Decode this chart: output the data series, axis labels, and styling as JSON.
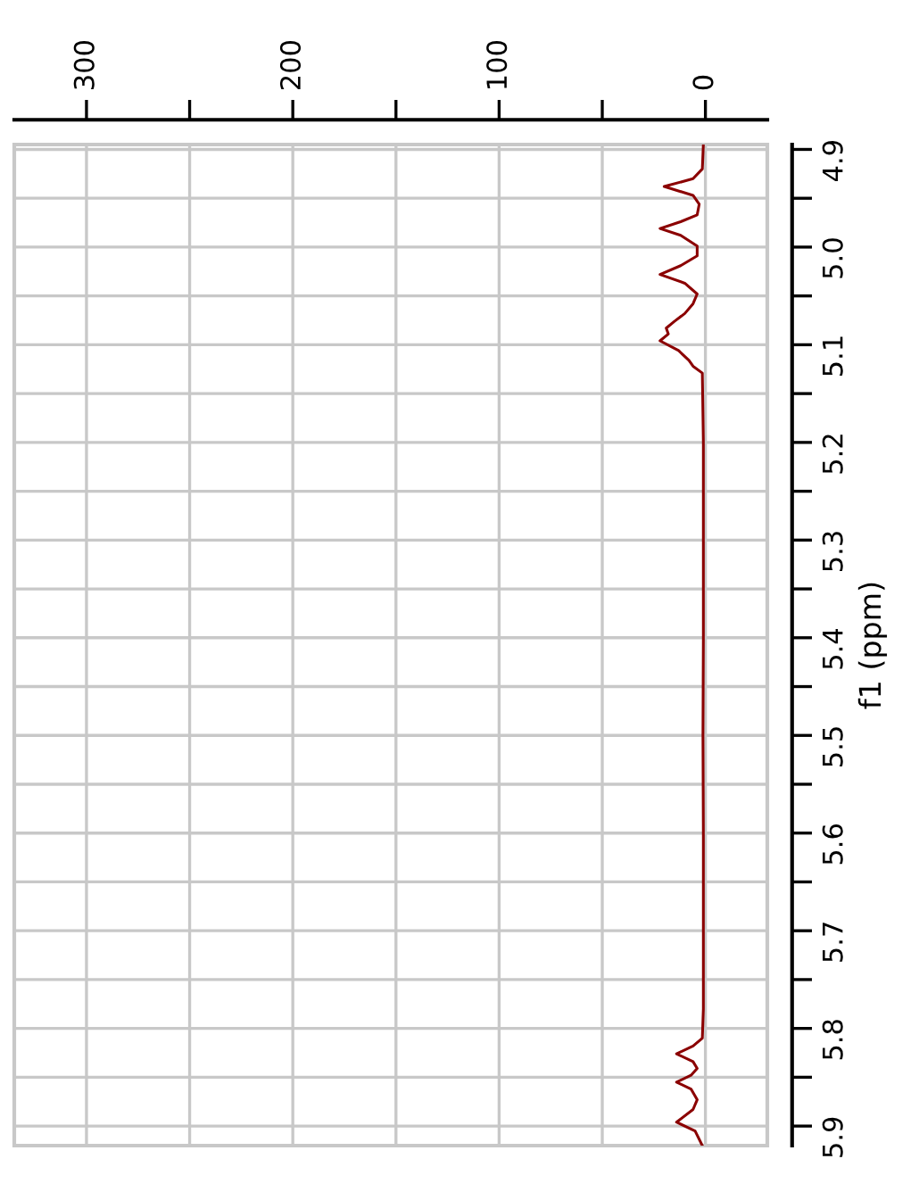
{
  "chart_data": {
    "type": "line",
    "orientation": "horizontal",
    "ylabel": "f1 (ppm)",
    "x": [
      4.895,
      4.92,
      4.93,
      4.938,
      4.947,
      4.956,
      4.967,
      4.974,
      4.981,
      4.988,
      4.999,
      5.009,
      5.019,
      5.028,
      5.037,
      5.048,
      5.058,
      5.068,
      5.076,
      5.083,
      5.089,
      5.096,
      5.106,
      5.116,
      5.122,
      5.129,
      5.2,
      5.3,
      5.4,
      5.5,
      5.6,
      5.7,
      5.78,
      5.81,
      5.818,
      5.826,
      5.834,
      5.841,
      5.848,
      5.855,
      5.862,
      5.873,
      5.883,
      5.896,
      5.905,
      5.92
    ],
    "series": [
      {
        "color": "#8b0000",
        "values": [
          1,
          1.5,
          6,
          20,
          6,
          3,
          4,
          12,
          22,
          12,
          4,
          4,
          12,
          22,
          10,
          4,
          6,
          10,
          15,
          19,
          18,
          22,
          13,
          8,
          6,
          1.5,
          1,
          1,
          1,
          1.2,
          1,
          1,
          1,
          1.5,
          6,
          14,
          6,
          4,
          7,
          14,
          7,
          4,
          6,
          14,
          5,
          1.5
        ]
      }
    ],
    "xlim": [
      335,
      -30
    ],
    "xticks": [
      300,
      {
        "value": 250,
        "label": null
      },
      200,
      {
        "value": 150,
        "label": null
      },
      100,
      {
        "value": 50,
        "label": null
      },
      0
    ],
    "ylim": [
      5.92,
      4.895
    ],
    "yticks": [
      4.9,
      {
        "value": 4.95,
        "label": null
      },
      {
        "value": 5.0,
        "label": "5.0"
      },
      {
        "value": 5.05,
        "label": null
      },
      5.1,
      {
        "value": 5.15,
        "label": null
      },
      5.2,
      {
        "value": 5.25,
        "label": null
      },
      5.3,
      {
        "value": 5.35,
        "label": null
      },
      5.4,
      {
        "value": 5.45,
        "label": null
      },
      5.5,
      {
        "value": 5.55,
        "label": null
      },
      5.6,
      {
        "value": 5.65,
        "label": null
      },
      5.7,
      {
        "value": 5.75,
        "label": null
      },
      5.8,
      {
        "value": 5.85,
        "label": null
      },
      5.9
    ],
    "grid": true,
    "marker": "none",
    "line_style": "solid"
  }
}
